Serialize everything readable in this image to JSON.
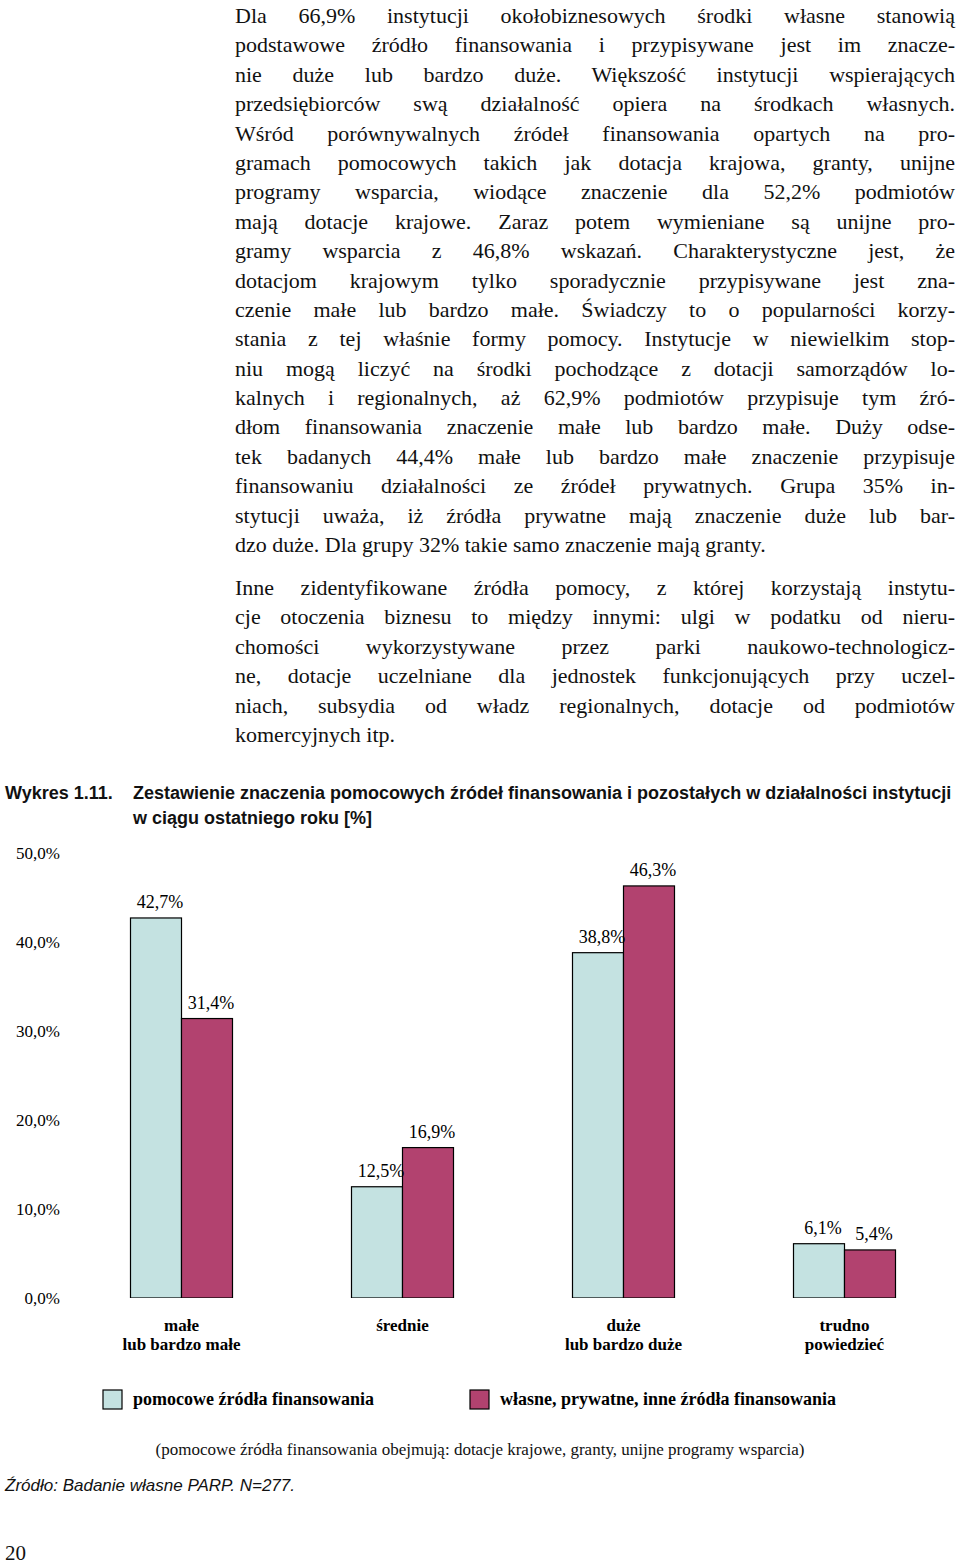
{
  "paragraphs": [
    [
      "Dla 66,9% instytucji okołobiznesowych środki własne stanowią",
      "podstawowe źródło finansowania i przypisywane jest im znacze-",
      "nie duże lub bardzo duże. Większość instytucji wspierających",
      "przedsiębiorców swą działalność opiera na środkach własnych.",
      "Wśród porównywalnych źródeł finansowania opartych na pro-",
      "gramach pomocowych takich jak dotacja krajowa, granty, unijne",
      "programy wsparcia, wiodące znaczenie dla 52,2% podmiotów",
      "mają dotacje krajowe. Zaraz potem wymieniane są unijne pro-",
      "gramy wsparcia z 46,8% wskazań. Charakterystyczne jest, że",
      "dotacjom krajowym tylko sporadycznie przypisywane jest zna-",
      "czenie małe lub bardzo małe. Świadczy to o popularności korzy-",
      "stania z tej właśnie formy pomocy. Instytucje w niewielkim stop-",
      "niu mogą liczyć na środki pochodzące z dotacji samorządów lo-",
      "kalnych i regionalnych, aż 62,9% podmiotów przypisuje tym źró-",
      "dłom finansowania znaczenie małe lub bardzo małe. Duży odse-",
      "tek badanych 44,4% małe lub bardzo małe znaczenie przypisuje",
      "finansowaniu działalności ze źródeł prywatnych. Grupa 35% in-",
      "stytucji uważa, iż źródła prywatne mają znaczenie duże lub bar-",
      "dzo duże. Dla grupy 32% takie samo znaczenie mają granty."
    ],
    [
      "Inne zidentyfikowane źródła pomocy, z której korzystają instytu-",
      "cje otoczenia biznesu to między innymi: ulgi w podatku od nieru-",
      "chomości wykorzystywane przez parki naukowo-technologicz-",
      "ne, dotacje uczelniane dla jednostek funkcjonujących przy uczel-",
      "niach, subsydia od władz regionalnych, dotacje od podmiotów",
      "komercyjnych itp."
    ]
  ],
  "figure_label": "Wykres 1.11.",
  "chart_data": {
    "type": "bar",
    "title": "Zestawienie znaczenia pomocowych źródeł finansowania i pozostałych w działalności instytucji w ciągu ostatniego roku [%]",
    "categories": [
      "małe\nlub bardzo małe",
      "średnie",
      "duże\nlub bardzo duże",
      "trudno\npowiedzieć"
    ],
    "series": [
      {
        "name": "pomocowe źródła finansowania",
        "color": "#c4e2e1",
        "values": [
          42.7,
          12.5,
          38.8,
          6.1
        ],
        "value_labels": [
          "42,7%",
          "12,5%",
          "38,8%",
          "6,1%"
        ]
      },
      {
        "name": "własne, prywatne, inne źródła finansowania",
        "color": "#b2426f",
        "values": [
          31.4,
          16.9,
          46.3,
          5.4
        ],
        "value_labels": [
          "31,4%",
          "16,9%",
          "46,3%",
          "5,4%"
        ]
      }
    ],
    "ylim": [
      0,
      50
    ],
    "yticks": [
      {
        "value": 0,
        "label": "0,0%"
      },
      {
        "value": 10,
        "label": "10,0%"
      },
      {
        "value": 20,
        "label": "20,0%"
      },
      {
        "value": 30,
        "label": "30,0%"
      },
      {
        "value": 40,
        "label": "40,0%"
      },
      {
        "value": 50,
        "label": "50,0%"
      }
    ],
    "grid": false,
    "legend": "bottom",
    "data_labels": true
  },
  "note": "(pomocowe źródła finansowania obejmują: dotacje krajowe, granty, unijne programy wsparcia)",
  "source": "Źródło: Badanie własne PARP. N=277.",
  "page_number": "20"
}
